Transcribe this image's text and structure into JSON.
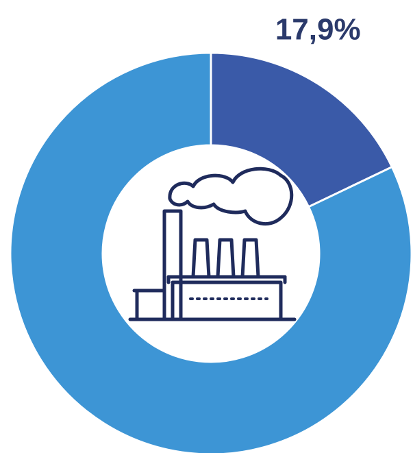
{
  "chart_data": {
    "type": "donut",
    "values": [
      17.9,
      82.1
    ],
    "value_labels": [
      "17,9%",
      null
    ],
    "colors": [
      "#3a5aa8",
      "#3d95d5"
    ]
  }
}
